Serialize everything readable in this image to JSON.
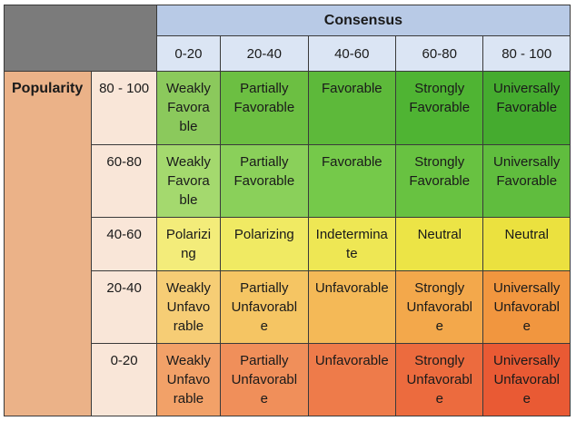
{
  "consensus": {
    "title": "Consensus",
    "columns": [
      "0-20",
      "20-40",
      "40-60",
      "60-80",
      "80 - 100"
    ]
  },
  "popularity": {
    "title": "Popularity",
    "rows": [
      "80 - 100",
      "60-80",
      "40-60",
      "20-40",
      "0-20"
    ]
  },
  "matrix": [
    [
      {
        "text": "Weakly\nFavora\nble",
        "color": "#8bc95c"
      },
      {
        "text": "Partially\nFavorable",
        "color": "#6cbf42"
      },
      {
        "text": "Favorable",
        "color": "#5db93a"
      },
      {
        "text": "Strongly\nFavorable",
        "color": "#4fb433"
      },
      {
        "text": "Universally\nFavorable",
        "color": "#45ab2f"
      }
    ],
    [
      {
        "text": "Weakly\nFavora\nble",
        "color": "#a4d96e"
      },
      {
        "text": "Partially\nFavorable",
        "color": "#8ad05a"
      },
      {
        "text": "Favorable",
        "color": "#75c94a"
      },
      {
        "text": "Strongly\nFavorable",
        "color": "#68c241"
      },
      {
        "text": "Universally\nFavorable",
        "color": "#60bd3e"
      }
    ],
    [
      {
        "text": "Polarizi\nng",
        "color": "#f3ec7a"
      },
      {
        "text": "Polarizing",
        "color": "#f0ea63"
      },
      {
        "text": "Indetermina\nte",
        "color": "#eee754"
      },
      {
        "text": "Neutral",
        "color": "#ece446"
      },
      {
        "text": "Neutral",
        "color": "#ebe13f"
      }
    ],
    [
      {
        "text": "Weakly\nUnfavo\nrable",
        "color": "#f6cd75"
      },
      {
        "text": "Partially\nUnfavorabl\ne",
        "color": "#f5c563"
      },
      {
        "text": "Unfavorable",
        "color": "#f4b957"
      },
      {
        "text": "Strongly\nUnfavorabl\ne",
        "color": "#f3a84b"
      },
      {
        "text": "Universally\nUnfavorabl\ne",
        "color": "#f1963f"
      }
    ],
    [
      {
        "text": "Weakly\nUnfavo\nrable",
        "color": "#f2a168"
      },
      {
        "text": "Partially\nUnfavorabl\ne",
        "color": "#f08f5a"
      },
      {
        "text": "Unfavorable",
        "color": "#ee7b4a"
      },
      {
        "text": "Strongly\nUnfavorabl\ne",
        "color": "#ec6b3e"
      },
      {
        "text": "Universally\nUnfavorabl\ne",
        "color": "#e95a34"
      }
    ]
  ]
}
